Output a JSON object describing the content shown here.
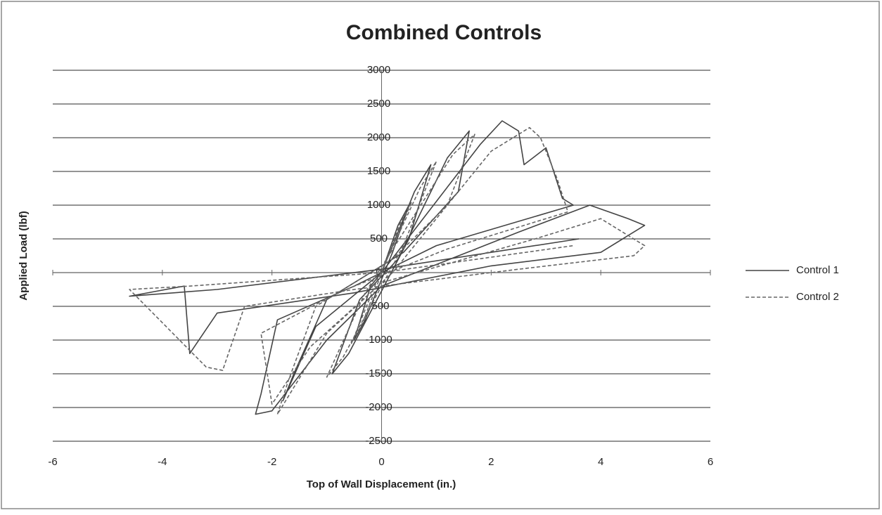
{
  "chart_data": {
    "type": "line",
    "title": "Combined Controls",
    "xlabel": "Top of Wall  Displacement (in.)",
    "ylabel": "Applied Load (lbf)",
    "xlim": [
      -6,
      6
    ],
    "xticks": [
      -6,
      -4,
      -2,
      0,
      2,
      4,
      6
    ],
    "ylim": [
      -2500,
      3000
    ],
    "yticks": [
      -2500,
      -2000,
      -1500,
      -1000,
      -500,
      0,
      500,
      1000,
      1500,
      2000,
      2500,
      3000
    ],
    "grid": true,
    "legend": "right",
    "series": [
      {
        "name": "Control 1",
        "color": "#444444",
        "dash": false,
        "x": [
          0,
          0.3,
          0.5,
          0.2,
          -0.3,
          -0.5,
          -0.2,
          0,
          0.6,
          0.9,
          0.5,
          -0.6,
          -0.9,
          -0.4,
          0.3,
          1.2,
          1.6,
          1.4,
          0.4,
          -1.0,
          -1.6,
          -1.8,
          -1.2,
          0,
          1.8,
          2.2,
          2.5,
          2.6,
          3.0,
          3.3,
          3.5,
          1.0,
          -0.5,
          -1.9,
          -2.2,
          -2.3,
          -2.0,
          -1.0,
          0,
          2.5,
          3.8,
          4.5,
          4.8,
          4.0,
          2.0,
          -0.5,
          -3.0,
          -3.5,
          -3.6,
          -4.6,
          -3.0,
          0,
          3.6
        ],
        "values": [
          0,
          700,
          1000,
          300,
          -700,
          -1000,
          -200,
          0,
          1200,
          1600,
          500,
          -1200,
          -1500,
          -400,
          200,
          1700,
          2100,
          1200,
          300,
          -400,
          -1500,
          -1900,
          -800,
          0,
          1900,
          2250,
          2100,
          1600,
          1850,
          1100,
          1000,
          400,
          -200,
          -700,
          -1800,
          -2100,
          -2050,
          -1000,
          -200,
          600,
          1000,
          800,
          700,
          300,
          100,
          -300,
          -600,
          -1200,
          -200,
          -350,
          -250,
          50,
          500
        ]
      },
      {
        "name": "Control 2",
        "color": "#666666",
        "dash": true,
        "x": [
          0,
          0.35,
          0.55,
          0.1,
          -0.35,
          -0.55,
          -0.1,
          0.7,
          1.0,
          0.4,
          -0.7,
          -1.0,
          -0.3,
          1.3,
          1.7,
          1.2,
          0.2,
          -1.2,
          -1.7,
          -1.9,
          -1.0,
          0.2,
          2.0,
          2.7,
          2.9,
          3.2,
          3.4,
          1.2,
          -0.8,
          -2.2,
          -2.0,
          -1.3,
          0,
          2.8,
          4.0,
          4.8,
          4.6,
          2.5,
          -0.5,
          -2.5,
          -2.9,
          -3.2,
          -4.6,
          -3.5,
          0,
          3.5
        ],
        "values": [
          0,
          750,
          1050,
          200,
          -750,
          -1050,
          -150,
          1250,
          1650,
          400,
          -1250,
          -1550,
          -300,
          1750,
          2050,
          1000,
          200,
          -500,
          -1600,
          -2100,
          -900,
          0,
          1800,
          2150,
          2000,
          1400,
          900,
          350,
          -300,
          -900,
          -1950,
          -1100,
          -150,
          500,
          800,
          400,
          250,
          50,
          -250,
          -500,
          -1450,
          -1400,
          -250,
          -200,
          0,
          400
        ]
      }
    ]
  }
}
